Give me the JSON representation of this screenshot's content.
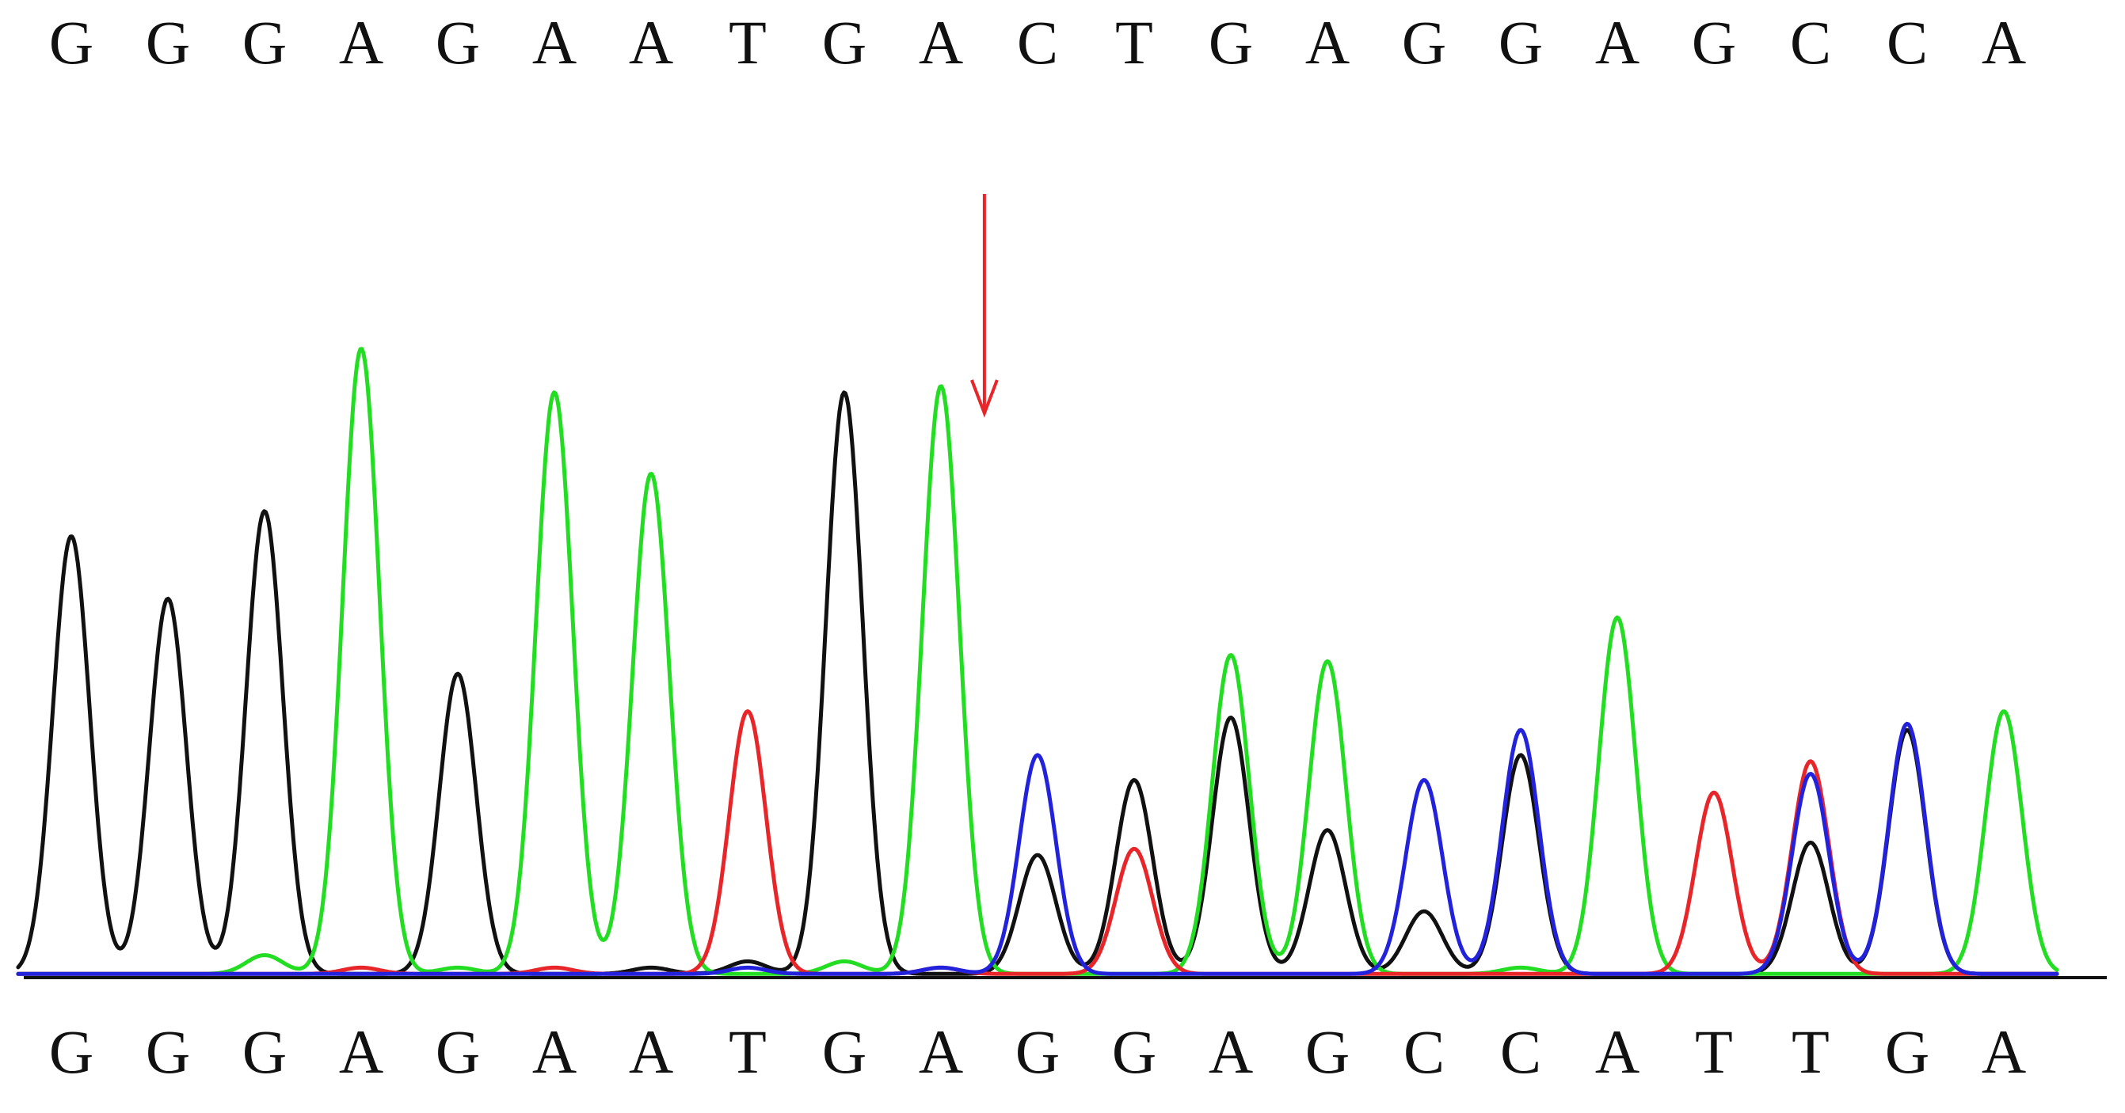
{
  "chart_data": {
    "type": "line",
    "title": "",
    "xlabel": "",
    "ylabel": "",
    "top_sequence": [
      "G",
      "G",
      "G",
      "A",
      "G",
      "A",
      "A",
      "T",
      "G",
      "A",
      "C",
      "T",
      "G",
      "A",
      "G",
      "G",
      "A",
      "G",
      "C",
      "C",
      "A"
    ],
    "bottom_sequence": [
      "G",
      "G",
      "G",
      "A",
      "G",
      "A",
      "A",
      "T",
      "G",
      "A",
      "G",
      "G",
      "A",
      "G",
      "C",
      "C",
      "A",
      "T",
      "T",
      "G",
      "A"
    ],
    "mutation_marker": {
      "position_after_base": 10,
      "color": "#e8262a"
    },
    "channel_colors": {
      "G": "#111111",
      "A": "#22dd22",
      "T": "#e8262a",
      "C": "#2222dd"
    },
    "ylim": [
      0,
      100
    ],
    "series": [
      {
        "channel": "G",
        "color": "#111111",
        "peaks": [
          [
            1,
            70
          ],
          [
            2,
            60
          ],
          [
            3,
            74
          ],
          [
            5,
            48
          ],
          [
            9,
            93
          ],
          [
            11,
            19
          ],
          [
            12,
            31
          ],
          [
            13,
            41
          ],
          [
            14,
            23
          ],
          [
            15,
            10
          ],
          [
            16,
            35
          ],
          [
            19,
            21
          ],
          [
            20,
            39
          ],
          [
            8,
            2
          ],
          [
            7,
            1
          ]
        ]
      },
      {
        "channel": "A",
        "color": "#22dd22",
        "peaks": [
          [
            4,
            100
          ],
          [
            6,
            93
          ],
          [
            7,
            80
          ],
          [
            10,
            94
          ],
          [
            13,
            51
          ],
          [
            14,
            50
          ],
          [
            17,
            57
          ],
          [
            21,
            42
          ],
          [
            3,
            3
          ],
          [
            5,
            1
          ],
          [
            9,
            2
          ],
          [
            16,
            1
          ]
        ]
      },
      {
        "channel": "T",
        "color": "#e8262a",
        "peaks": [
          [
            8,
            42
          ],
          [
            12,
            20
          ],
          [
            18,
            29
          ],
          [
            19,
            34
          ],
          [
            4,
            1
          ],
          [
            6,
            1
          ],
          [
            10,
            1
          ]
        ]
      },
      {
        "channel": "C",
        "color": "#2222dd",
        "peaks": [
          [
            11,
            35
          ],
          [
            15,
            31
          ],
          [
            16,
            39
          ],
          [
            19,
            32
          ],
          [
            20,
            40
          ],
          [
            8,
            1
          ],
          [
            10,
            1
          ]
        ]
      }
    ]
  }
}
